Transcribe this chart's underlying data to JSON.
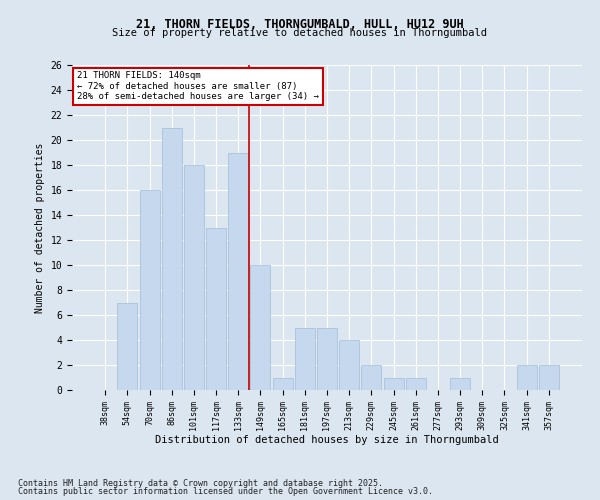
{
  "title1": "21, THORN FIELDS, THORNGUMBALD, HULL, HU12 9UH",
  "title2": "Size of property relative to detached houses in Thorngumbald",
  "xlabel": "Distribution of detached houses by size in Thorngumbald",
  "ylabel": "Number of detached properties",
  "categories": [
    "38sqm",
    "54sqm",
    "70sqm",
    "86sqm",
    "101sqm",
    "117sqm",
    "133sqm",
    "149sqm",
    "165sqm",
    "181sqm",
    "197sqm",
    "213sqm",
    "229sqm",
    "245sqm",
    "261sqm",
    "277sqm",
    "293sqm",
    "309sqm",
    "325sqm",
    "341sqm",
    "357sqm"
  ],
  "values": [
    0,
    7,
    16,
    21,
    18,
    13,
    19,
    10,
    1,
    5,
    5,
    4,
    2,
    1,
    1,
    0,
    1,
    0,
    0,
    2,
    2
  ],
  "bar_color": "#c5d8ed",
  "bar_edge_color": "#a0bcd8",
  "vline_x": 6.5,
  "vline_color": "#cc0000",
  "legend_title": "21 THORN FIELDS: 140sqm",
  "legend_line1": "← 72% of detached houses are smaller (87)",
  "legend_line2": "28% of semi-detached houses are larger (34) →",
  "legend_box_color": "#ffffff",
  "legend_box_edge": "#cc0000",
  "ylim": [
    0,
    26
  ],
  "yticks": [
    0,
    2,
    4,
    6,
    8,
    10,
    12,
    14,
    16,
    18,
    20,
    22,
    24,
    26
  ],
  "footer1": "Contains HM Land Registry data © Crown copyright and database right 2025.",
  "footer2": "Contains public sector information licensed under the Open Government Licence v3.0.",
  "bg_color": "#dce6f0",
  "plot_bg": "#dce6f0",
  "grid_color": "#ffffff"
}
